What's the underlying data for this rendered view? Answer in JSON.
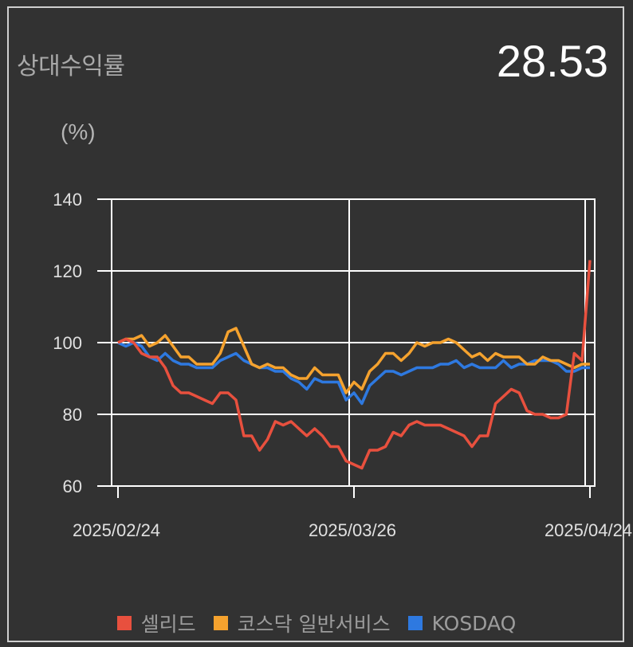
{
  "header": {
    "title": "상대수익률",
    "value": "28.53",
    "unit_label": "(%)"
  },
  "chart_data": {
    "type": "line",
    "title": "상대수익률",
    "ylabel": "(%)",
    "ylim": [
      60,
      140
    ],
    "yticks": [
      60,
      80,
      100,
      120,
      140
    ],
    "x_tick_labels": [
      "2025/02/24",
      "2025/03/26",
      "2025/04/24"
    ],
    "x_tick_index": [
      0,
      30,
      60
    ],
    "grid": true,
    "legend_position": "bottom",
    "series": [
      {
        "name": "셀리드",
        "color": "#e8503e",
        "values": [
          100,
          101,
          100,
          97,
          96,
          96,
          93,
          88,
          86,
          86,
          85,
          84,
          83,
          86,
          86,
          84,
          74,
          74,
          70,
          73,
          78,
          77,
          78,
          76,
          74,
          76,
          74,
          71,
          71,
          67,
          66,
          65,
          70,
          70,
          71,
          75,
          74,
          77,
          78,
          77,
          77,
          77,
          76,
          75,
          74,
          71,
          74,
          74,
          83,
          85,
          87,
          86,
          81,
          80,
          80,
          79,
          79,
          80,
          97,
          95,
          123
        ]
      },
      {
        "name": "코스닥 일반서비스",
        "color": "#f5a22e",
        "values": [
          100,
          101,
          101,
          102,
          99,
          100,
          102,
          99,
          96,
          96,
          94,
          94,
          94,
          97,
          103,
          104,
          99,
          94,
          93,
          94,
          93,
          93,
          91,
          90,
          90,
          93,
          91,
          91,
          91,
          86,
          89,
          87,
          92,
          94,
          97,
          97,
          95,
          97,
          100,
          99,
          100,
          100,
          101,
          100,
          98,
          96,
          97,
          95,
          97,
          96,
          96,
          96,
          94,
          94,
          96,
          95,
          95,
          94,
          93,
          94,
          94
        ]
      },
      {
        "name": "KOSDAQ",
        "color": "#2e79e0",
        "values": [
          100,
          99,
          100,
          99,
          96,
          95,
          97,
          95,
          94,
          94,
          93,
          93,
          93,
          95,
          96,
          97,
          95,
          94,
          93,
          93,
          92,
          92,
          90,
          89,
          87,
          90,
          89,
          89,
          89,
          84,
          86,
          83,
          88,
          90,
          92,
          92,
          91,
          92,
          93,
          93,
          93,
          94,
          94,
          95,
          93,
          94,
          93,
          93,
          93,
          95,
          93,
          94,
          94,
          95,
          95,
          95,
          94,
          92,
          92,
          93,
          93
        ]
      }
    ]
  }
}
